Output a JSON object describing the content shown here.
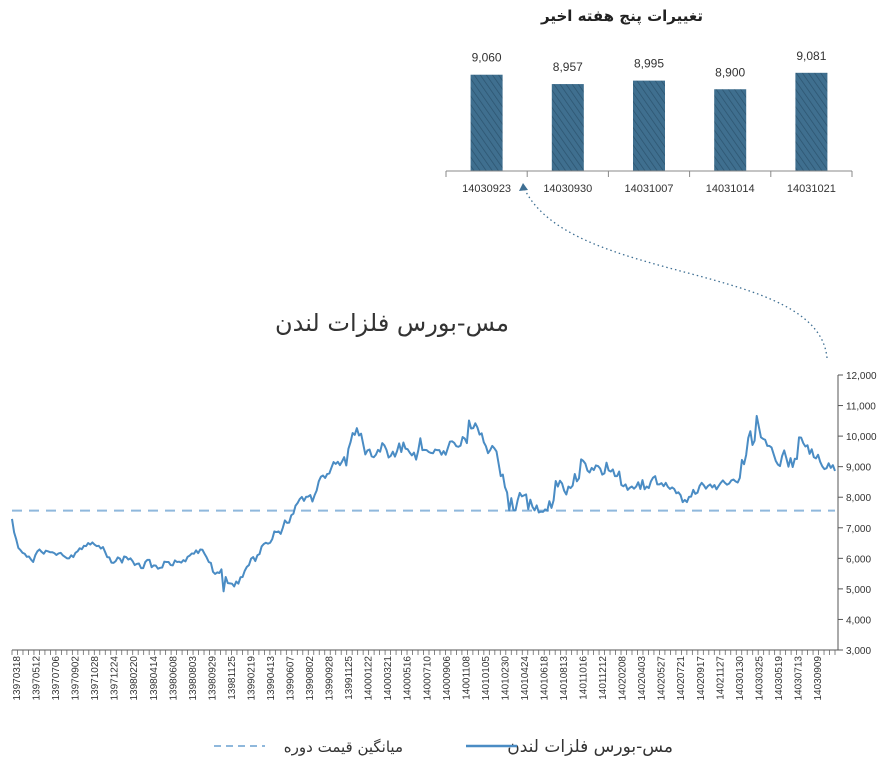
{
  "chart_data": [
    {
      "type": "bar",
      "title": "تغییرات پنج هفته اخیر",
      "categories": [
        "14030923",
        "14030930",
        "14031007",
        "14031014",
        "14031021"
      ],
      "values": [
        9060,
        8957,
        8995,
        8900,
        9081
      ],
      "value_labels": [
        "9,060",
        "8,957",
        "8,995",
        "8,900",
        "9,081"
      ],
      "ylim": [
        8000,
        9200
      ],
      "colors": {
        "bar": "#3f6f8f",
        "bar_hatch": "#2c5470",
        "axis": "#888888"
      }
    },
    {
      "type": "line",
      "title": "مس-بورس فلزات لندن",
      "ylim": [
        3000,
        12000
      ],
      "y_ticks": [
        3000,
        4000,
        5000,
        6000,
        7000,
        8000,
        9000,
        10000,
        11000,
        12000
      ],
      "y_tick_labels": [
        "3,000",
        "4,000",
        "5,000",
        "6,000",
        "7,000",
        "8,000",
        "9,000",
        "10,000",
        "11,000",
        "12,000"
      ],
      "x_tick_labels": [
        "13970318",
        "13970512",
        "13970706",
        "13970902",
        "13971028",
        "13971224",
        "13980220",
        "13980414",
        "13980608",
        "13980803",
        "13980929",
        "13981125",
        "13990219",
        "13990413",
        "13990607",
        "13990802",
        "13990928",
        "13991125",
        "14000122",
        "14000321",
        "14000516",
        "14000710",
        "14000906",
        "14001108",
        "14010105",
        "14010230",
        "14010424",
        "14010618",
        "14010813",
        "14011016",
        "14011212",
        "14020208",
        "14020403",
        "14020527",
        "14020721",
        "14020917",
        "14021127",
        "14030130",
        "14030325",
        "14030519",
        "14030713",
        "14030909"
      ],
      "legend": {
        "position": "bottom",
        "line_label": "مس-بورس فلزات لندن",
        "avg_label": "میانگین قیمت دوره"
      },
      "average_value": 7560,
      "colors": {
        "line": "#4a8cc4",
        "average": "#8fb8dc",
        "axis": "#555555"
      },
      "series": [
        {
          "name": "مس-بورس فلزات لندن",
          "values": [
            7290,
            6850,
            6620,
            6340,
            6270,
            6180,
            6150,
            6050,
            6060,
            5960,
            5880,
            6100,
            6230,
            6290,
            6210,
            6150,
            6250,
            6230,
            6200,
            6200,
            6170,
            6110,
            6160,
            6180,
            6100,
            6050,
            6000,
            6000,
            6100,
            6040,
            6180,
            6230,
            6330,
            6300,
            6410,
            6400,
            6500,
            6450,
            6520,
            6450,
            6400,
            6410,
            6320,
            6370,
            6210,
            6040,
            6030,
            5860,
            5850,
            5910,
            6030,
            5990,
            5860,
            6060,
            6040,
            5960,
            6000,
            5910,
            5780,
            5820,
            5830,
            5680,
            5680,
            5880,
            5950,
            5950,
            5710,
            5770,
            5760,
            5660,
            5690,
            5700,
            5890,
            5880,
            5880,
            5780,
            5770,
            5930,
            5880,
            5890,
            5860,
            5940,
            5900,
            6050,
            6090,
            6160,
            6150,
            6260,
            6170,
            6290,
            6280,
            6150,
            6030,
            5880,
            5850,
            5560,
            5490,
            5540,
            5520,
            5640,
            4920,
            5390,
            5190,
            5180,
            5170,
            5080,
            5240,
            5170,
            5380,
            5390,
            5590,
            5720,
            5780,
            5990,
            6040,
            5910,
            6100,
            6140,
            6390,
            6470,
            6510,
            6480,
            6510,
            6630,
            6880,
            6860,
            6880,
            6800,
            7000,
            7240,
            7160,
            7170,
            7410,
            7460,
            7720,
            7810,
            7940,
            8010,
            7880,
            8010,
            8020,
            8070,
            7860,
            8060,
            8220,
            8520,
            8670,
            8710,
            8630,
            8760,
            8780,
            8970,
            9150,
            9090,
            9160,
            9050,
            9170,
            9310,
            9040,
            9580,
            9800,
            10100,
            10040,
            10260,
            10020,
            10080,
            9740,
            9400,
            9530,
            9560,
            9340,
            9310,
            9390,
            9550,
            9490,
            9770,
            9700,
            9550,
            9300,
            9350,
            9490,
            9330,
            9510,
            9760,
            9480,
            9790,
            9590,
            9570,
            9460,
            9370,
            9460,
            9230,
            9520,
            9930,
            9540,
            9550,
            9540,
            9480,
            9450,
            9440,
            9560,
            9540,
            9540,
            9390,
            9510,
            9390,
            9610,
            9820,
            9830,
            9780,
            9670,
            9650,
            9690,
            9970,
            9920,
            9770,
            10510,
            10250,
            10260,
            10420,
            10280,
            10050,
            10090,
            9800,
            9670,
            9440,
            9540,
            9680,
            9600,
            9500,
            9100,
            8690,
            8740,
            8330,
            8160,
            7570,
            7970,
            7580,
            7570,
            7900,
            8140,
            8030,
            8060,
            8090,
            7610,
            7920,
            7690,
            7570,
            7730,
            7500,
            7530,
            7520,
            7600,
            7560,
            7870,
            7650,
            7900,
            8530,
            8350,
            8540,
            8450,
            8210,
            8090,
            8350,
            8300,
            8380,
            8760,
            8520,
            8620,
            9240,
            9190,
            9100,
            8870,
            8810,
            8960,
            8890,
            9040,
            9020,
            8940,
            8740,
            8780,
            9130,
            8880,
            8840,
            8910,
            8690,
            8690,
            8840,
            8400,
            8360,
            8420,
            8240,
            8310,
            8350,
            8280,
            8350,
            8490,
            8270,
            8560,
            8260,
            8350,
            8300,
            8520,
            8640,
            8690,
            8420,
            8420,
            8460,
            8360,
            8470,
            8340,
            8270,
            8320,
            8270,
            8130,
            8160,
            8070,
            7840,
            7910,
            7840,
            8010,
            8020,
            8240,
            8110,
            8150,
            8370,
            8470,
            8390,
            8280,
            8370,
            8420,
            8320,
            8400,
            8260,
            8370,
            8470,
            8550,
            8470,
            8410,
            8450,
            8550,
            8580,
            8520,
            8480,
            8630,
            9220,
            9080,
            9380,
            9940,
            10160,
            9710,
            9850,
            10660,
            10310,
            9960,
            9910,
            9880,
            9680,
            9680,
            9630,
            9410,
            9190,
            9070,
            9020,
            9350,
            9530,
            9280,
            9000,
            9280,
            8990,
            9260,
            9250,
            9960,
            9950,
            9770,
            9660,
            9700,
            9420,
            9570,
            9310,
            9270,
            9390,
            9160,
            9010,
            8920,
            8950,
            9110,
            8960,
            9050,
            8860
          ]
        }
      ]
    }
  ]
}
